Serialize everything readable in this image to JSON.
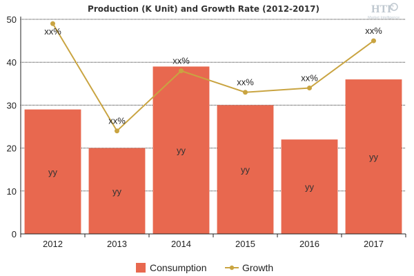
{
  "chart_data": {
    "type": "bar",
    "title": "Production (K Unit) and Growth Rate (2012-2017)",
    "categories": [
      "2012",
      "2013",
      "2014",
      "2015",
      "2016",
      "2017"
    ],
    "series": [
      {
        "name": "Consumption",
        "kind": "bar",
        "values": [
          29,
          20,
          39,
          30,
          22,
          36
        ],
        "labels": [
          "yy",
          "yy",
          "yy",
          "yy",
          "yy",
          "yy"
        ]
      },
      {
        "name": "Growth",
        "kind": "line",
        "values": [
          49,
          24,
          38,
          33,
          34,
          45
        ],
        "labels": [
          "xx%",
          "xx%",
          "xx%",
          "xx%",
          "xx%",
          "xx%"
        ]
      }
    ],
    "ylim": [
      0,
      50
    ],
    "yticks": [
      "0",
      "10",
      "20",
      "30",
      "40",
      "50"
    ],
    "xlabel": "",
    "ylabel": "",
    "grid": true,
    "legend": "bottom",
    "colors": {
      "bar": "#E8684F",
      "line": "#C9A441",
      "grid": "#222222"
    }
  },
  "watermark": {
    "brand": "HTF",
    "tagline": "Market Intelligence"
  }
}
